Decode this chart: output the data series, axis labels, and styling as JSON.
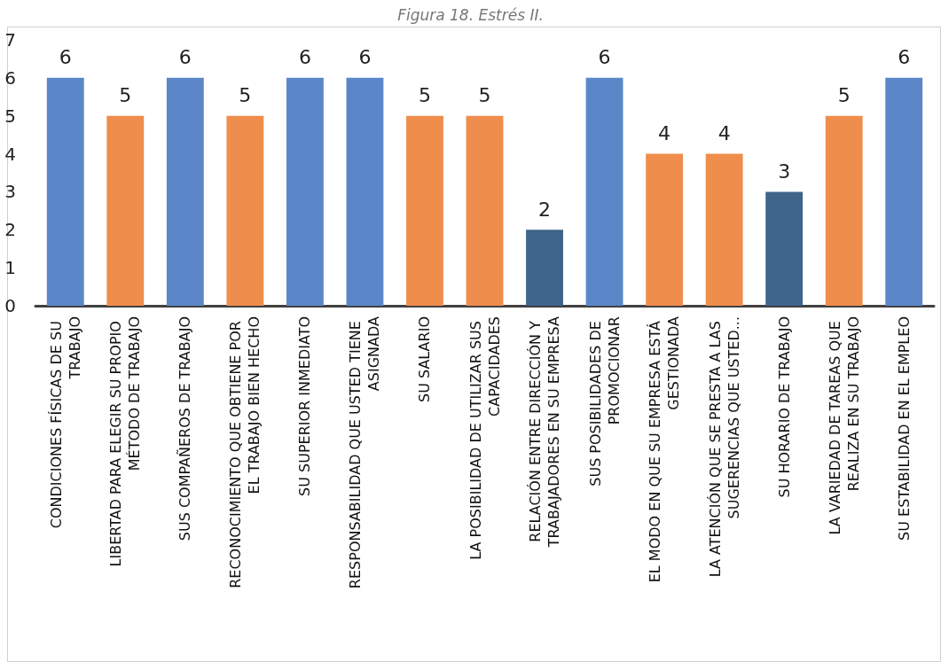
{
  "chart_data": {
    "type": "bar",
    "title": "Figura 18. Estrés II.",
    "categories": [
      "CONDICIONES FÍSICAS DE SU TRABAJO",
      "LIBERTAD PARA ELEGIR SU PROPIO MÉTODO DE TRABAJO",
      "SUS COMPAÑEROS DE TRABAJO",
      "RECONOCIMIENTO QUE OBTIENE POR EL TRABAJO BIEN HECHO",
      "SU SUPERIOR INMEDIATO",
      "RESPONSABILIDAD QUE USTED TIENE ASIGNADA",
      "SU SALARIO",
      "LA POSIBILIDAD DE UTILIZAR SUS CAPACIDADES",
      "RELACIÓN ENTRE DIRECCIÓN Y TRABAJADORES EN SU EMPRESA",
      "SUS POSIBILIDADES DE PROMOCIONAR",
      "EL MODO EN QUE SU EMPRESA ESTÁ GESTIONADA",
      "LA ATENCIÓN QUE SE PRESTA A LAS SUGERENCIAS QUE USTED...",
      "SU HORARIO DE TRABAJO",
      "LA VARIEDAD DE TAREAS QUE REALIZA EN SU TRABAJO",
      "SU ESTABILIDAD EN EL EMPLEO"
    ],
    "values": [
      6,
      5,
      6,
      5,
      6,
      6,
      5,
      5,
      2,
      6,
      4,
      4,
      3,
      5,
      6
    ],
    "colors": [
      "#5b87c9",
      "#ef8d4c",
      "#5b87c9",
      "#ef8d4c",
      "#5b87c9",
      "#5b87c9",
      "#ef8d4c",
      "#ef8d4c",
      "#3e6489",
      "#5b87c9",
      "#ef8d4c",
      "#ef8d4c",
      "#3e6489",
      "#ef8d4c",
      "#5b87c9"
    ],
    "ylim": [
      0,
      7
    ],
    "yticks": [
      0,
      1,
      2,
      3,
      4,
      5,
      6,
      7
    ],
    "grid": false,
    "data_labels": true
  }
}
